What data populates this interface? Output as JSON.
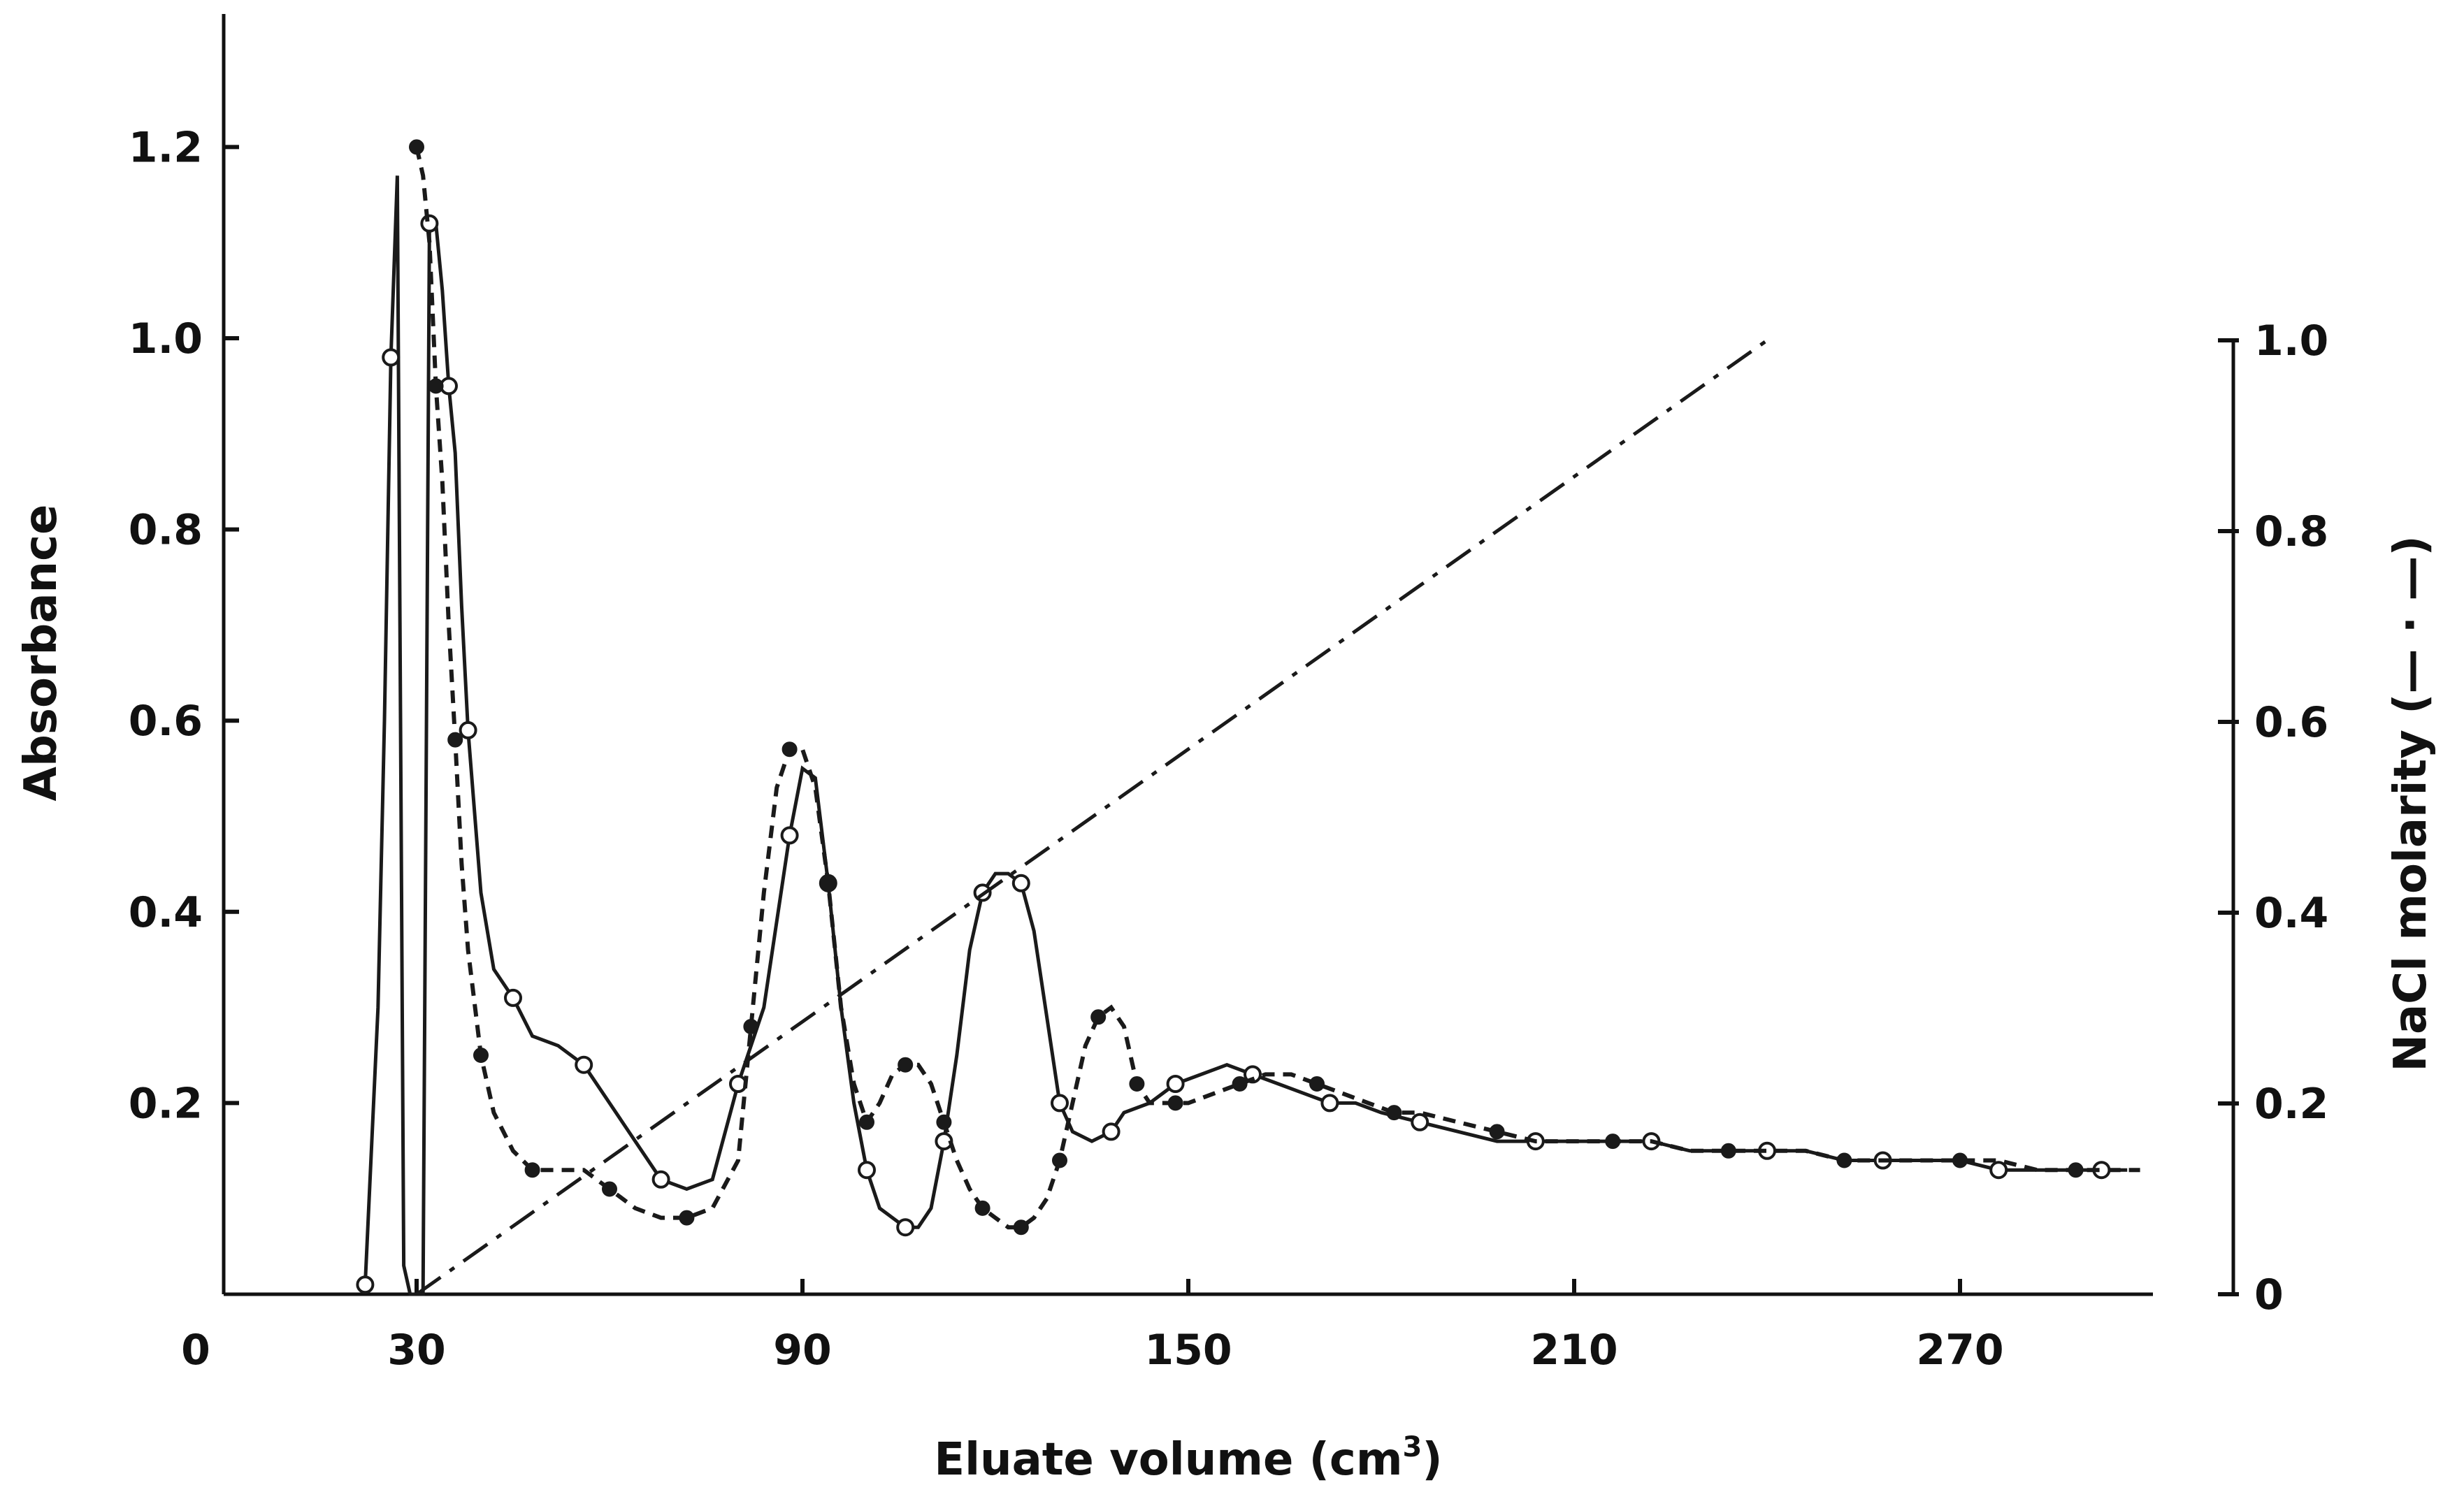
{
  "chart_data": {
    "type": "line",
    "xlabel": "Eluate volume (cm",
    "xlabel_sup": "3",
    "xlabel_end": ")",
    "ylabel_left": "Absorbance",
    "ylabel_right": "NaCl molarity (— · —)",
    "xlim": [
      0,
      300
    ],
    "ylim_left": [
      0,
      1.3
    ],
    "ylim_right": [
      0,
      1.0
    ],
    "x_ticks": [
      0,
      30,
      90,
      150,
      210,
      270
    ],
    "x_tick_labels": [
      "0",
      "30",
      "90",
      "150",
      "210",
      "270"
    ],
    "y_left_ticks": [
      0.2,
      0.4,
      0.6,
      0.8,
      1.0,
      1.2
    ],
    "y_left_tick_labels": [
      "0.2",
      "0.4",
      "0.6",
      "0.8",
      "1.0",
      "1.2"
    ],
    "y_right_ticks": [
      0,
      0.2,
      0.4,
      0.6,
      0.8,
      1.0
    ],
    "y_right_tick_labels": [
      "0",
      "0.2",
      "0.4",
      "0.6",
      "0.8",
      "1.0"
    ],
    "grid": false,
    "legend": "none",
    "series": [
      {
        "style": "solid-open-circles",
        "axis": "left",
        "x": [
          22,
          24,
          25,
          26,
          27,
          28,
          29,
          30,
          31,
          32,
          33,
          34,
          35,
          36,
          37,
          38,
          40,
          42,
          45,
          48,
          52,
          56,
          60,
          64,
          68,
          72,
          76,
          80,
          84,
          86,
          88,
          90,
          92,
          94,
          96,
          98,
          100,
          102,
          104,
          106,
          108,
          110,
          112,
          114,
          116,
          118,
          120,
          122,
          124,
          126,
          128,
          130,
          132,
          135,
          138,
          140,
          144,
          148,
          152,
          156,
          160,
          164,
          168,
          172,
          176,
          180,
          186,
          192,
          198,
          204,
          210,
          216,
          222,
          228,
          234,
          240,
          246,
          252,
          258,
          264,
          270,
          276,
          282,
          288,
          292,
          296
        ],
        "y": [
          0.01,
          0.3,
          0.6,
          0.98,
          1.17,
          0.03,
          0.0,
          0.0,
          0.0,
          1.12,
          1.12,
          1.05,
          0.95,
          0.88,
          0.72,
          0.59,
          0.42,
          0.34,
          0.31,
          0.27,
          0.26,
          0.24,
          0.2,
          0.16,
          0.12,
          0.11,
          0.12,
          0.22,
          0.3,
          0.39,
          0.48,
          0.55,
          0.54,
          0.43,
          0.3,
          0.2,
          0.13,
          0.09,
          0.08,
          0.07,
          0.07,
          0.09,
          0.16,
          0.25,
          0.36,
          0.42,
          0.44,
          0.44,
          0.43,
          0.38,
          0.29,
          0.2,
          0.17,
          0.16,
          0.17,
          0.19,
          0.2,
          0.22,
          0.23,
          0.24,
          0.23,
          0.22,
          0.21,
          0.2,
          0.2,
          0.19,
          0.18,
          0.17,
          0.16,
          0.16,
          0.16,
          0.16,
          0.16,
          0.15,
          0.15,
          0.15,
          0.15,
          0.14,
          0.14,
          0.14,
          0.14,
          0.13,
          0.13,
          0.13,
          0.13,
          0.13
        ]
      },
      {
        "style": "dashed-filled-circles",
        "axis": "left",
        "x": [
          30,
          31,
          32,
          33,
          34,
          35,
          36,
          37,
          38,
          40,
          42,
          45,
          48,
          52,
          56,
          60,
          64,
          68,
          72,
          76,
          80,
          82,
          84,
          86,
          88,
          90,
          92,
          94,
          96,
          98,
          100,
          102,
          104,
          106,
          108,
          110,
          112,
          114,
          116,
          118,
          120,
          122,
          124,
          126,
          128,
          130,
          132,
          134,
          136,
          138,
          140,
          142,
          144,
          146,
          148,
          150,
          154,
          158,
          162,
          166,
          170,
          174,
          178,
          182,
          186,
          192,
          198,
          204,
          210,
          216,
          222,
          228,
          234,
          240,
          246,
          252,
          258,
          264,
          270,
          276,
          282,
          288,
          294,
          298
        ],
        "y": [
          1.2,
          1.17,
          1.1,
          0.95,
          0.85,
          0.7,
          0.58,
          0.45,
          0.36,
          0.25,
          0.19,
          0.15,
          0.13,
          0.13,
          0.13,
          0.11,
          0.09,
          0.08,
          0.08,
          0.09,
          0.14,
          0.28,
          0.42,
          0.53,
          0.57,
          0.57,
          0.53,
          0.43,
          0.3,
          0.22,
          0.18,
          0.2,
          0.23,
          0.24,
          0.24,
          0.22,
          0.18,
          0.14,
          0.11,
          0.09,
          0.08,
          0.07,
          0.07,
          0.08,
          0.1,
          0.14,
          0.2,
          0.26,
          0.29,
          0.3,
          0.28,
          0.22,
          0.2,
          0.2,
          0.2,
          0.2,
          0.21,
          0.22,
          0.23,
          0.23,
          0.22,
          0.21,
          0.2,
          0.19,
          0.19,
          0.18,
          0.17,
          0.16,
          0.16,
          0.16,
          0.16,
          0.15,
          0.15,
          0.15,
          0.15,
          0.14,
          0.14,
          0.14,
          0.14,
          0.14,
          0.13,
          0.13,
          0.13,
          0.13
        ]
      },
      {
        "style": "dash-dot",
        "axis": "right",
        "x": [
          30,
          240
        ],
        "y": [
          0.0,
          1.0
        ]
      }
    ]
  }
}
